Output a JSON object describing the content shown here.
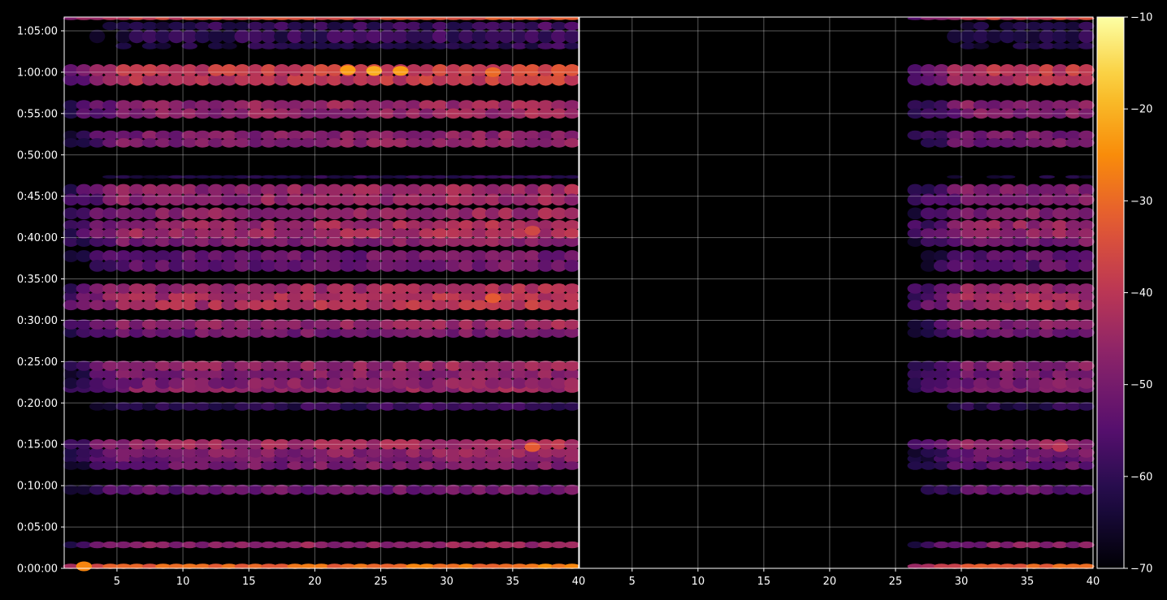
{
  "chart_data": {
    "type": "heatmap",
    "title": "",
    "panels": [
      {
        "name": "",
        "xlim": [
          1,
          40
        ],
        "xticks": [
          5,
          10,
          15,
          20,
          25,
          30,
          35
        ],
        "x_end_label": "40",
        "activity_cols": [
          1,
          39
        ],
        "onset": 1
      },
      {
        "name": "",
        "xlim": [
          1,
          40
        ],
        "xticks": [
          5,
          10,
          15,
          20,
          25,
          30,
          35
        ],
        "x_end_label": "40",
        "activity_cols": [
          1,
          39
        ],
        "onset": 26
      }
    ],
    "y": {
      "unit": "seconds",
      "lim": [
        0,
        4000
      ],
      "ticks": [
        0,
        300,
        600,
        900,
        1200,
        1500,
        1800,
        2100,
        2400,
        2700,
        3000,
        3300,
        3600,
        3900
      ],
      "tick_labels": [
        "0:00:00",
        "0:05:00",
        "0:10:00",
        "0:15:00",
        "0:20:00",
        "0:25:00",
        "0:30:00",
        "0:35:00",
        "0:40:00",
        "0:45:00",
        "0:50:00",
        "0:55:00",
        "1:00:00",
        "1:05:00"
      ]
    },
    "bands": [
      {
        "t0": 0,
        "t1": 30,
        "level": -30
      },
      {
        "t0": 150,
        "t1": 190,
        "level": -46
      },
      {
        "t0": 540,
        "t1": 600,
        "level": -52
      },
      {
        "t0": 720,
        "t1": 820,
        "level": -50
      },
      {
        "t0": 810,
        "t1": 870,
        "level": -48
      },
      {
        "t0": 870,
        "t1": 930,
        "level": -44
      },
      {
        "t0": 1150,
        "t1": 1200,
        "level": -60
      },
      {
        "t0": 1280,
        "t1": 1330,
        "level": -47
      },
      {
        "t0": 1310,
        "t1": 1440,
        "level": -48
      },
      {
        "t0": 1440,
        "t1": 1500,
        "level": -46
      },
      {
        "t0": 1680,
        "t1": 1740,
        "level": -50
      },
      {
        "t0": 1740,
        "t1": 1800,
        "level": -46
      },
      {
        "t0": 1880,
        "t1": 2000,
        "level": -42
      },
      {
        "t0": 2000,
        "t1": 2060,
        "level": -44
      },
      {
        "t0": 2160,
        "t1": 2300,
        "level": -52
      },
      {
        "t0": 2340,
        "t1": 2400,
        "level": -48
      },
      {
        "t0": 2400,
        "t1": 2520,
        "level": -44
      },
      {
        "t0": 2540,
        "t1": 2610,
        "level": -46
      },
      {
        "t0": 2640,
        "t1": 2780,
        "level": -46
      },
      {
        "t0": 2830,
        "t1": 2850,
        "level": -62
      },
      {
        "t0": 3060,
        "t1": 3170,
        "level": -48
      },
      {
        "t0": 3270,
        "t1": 3390,
        "level": -46
      },
      {
        "t0": 3510,
        "t1": 3580,
        "level": -40
      },
      {
        "t0": 3580,
        "t1": 3650,
        "level": -38
      },
      {
        "t0": 3770,
        "t1": 3810,
        "level": -62
      },
      {
        "t0": 3820,
        "t1": 3900,
        "level": -60
      },
      {
        "t0": 3910,
        "t1": 3960,
        "level": -60
      },
      {
        "t0": 3980,
        "t1": 4000,
        "level": -36
      }
    ],
    "hotspots": [
      {
        "panel": 0,
        "x": 22,
        "t": 3615,
        "level": -23
      },
      {
        "panel": 0,
        "x": 24,
        "t": 3610,
        "level": -21
      },
      {
        "panel": 0,
        "x": 26,
        "t": 3610,
        "level": -23
      },
      {
        "panel": 0,
        "x": 33,
        "t": 3600,
        "level": -30
      },
      {
        "panel": 0,
        "x": 33,
        "t": 1960,
        "level": -32
      },
      {
        "panel": 0,
        "x": 36,
        "t": 2450,
        "level": -36
      },
      {
        "panel": 0,
        "x": 36,
        "t": 880,
        "level": -32
      },
      {
        "panel": 0,
        "x": 2,
        "t": 15,
        "level": -26
      },
      {
        "panel": 1,
        "x": 37,
        "t": 880,
        "level": -40
      },
      {
        "panel": 1,
        "x": 33,
        "t": 1960,
        "level": -44
      }
    ],
    "colorbar": {
      "cmap": "inferno",
      "min": -70,
      "max": -10,
      "ticks": [
        -70,
        -60,
        -50,
        -40,
        -30,
        -20,
        -10
      ],
      "tick_labels": [
        "−70",
        "−60",
        "−50",
        "−40",
        "−30",
        "−20",
        "−10"
      ]
    },
    "grid": true,
    "background": "#000000"
  }
}
